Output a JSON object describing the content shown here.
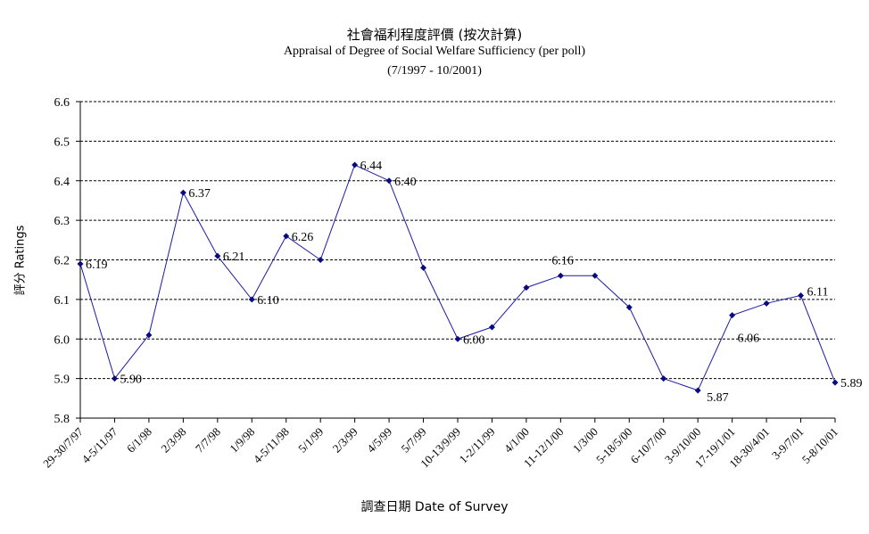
{
  "chart_data": {
    "type": "line",
    "title": "社會福利程度評價 (按次計算)",
    "subtitle": "Appraisal of Degree of Social Welfare Sufficiency (per poll)",
    "date_range": "(7/1997 - 10/2001)",
    "xlabel": "調查日期 Date of Survey",
    "ylabel": "評分 Ratings",
    "ylim": [
      5.8,
      6.6
    ],
    "yticks": [
      "6.6",
      "6.5",
      "6.4",
      "6.3",
      "6.2",
      "6.1",
      "6.0",
      "5.9",
      "5.8"
    ],
    "grid": true,
    "color": "#1a1aa6",
    "categories": [
      "29-30/7/97",
      "4-5/11/97",
      "6/1/98",
      "2/3/98",
      "7/7/98",
      "1/9/98",
      "4-5/11/98",
      "5/1/99",
      "2/3/99",
      "4/5/99",
      "5/7/99",
      "10-13/9/99",
      "1-2/11/99",
      "4/1/00",
      "11-12/1/00",
      "1/3/00",
      "5-18/5/00",
      "6-10/7/00",
      "3-9/10/00",
      "17-19/1/01",
      "18-30/4/01",
      "3-9/7/01",
      "5-8/10/01"
    ],
    "values": [
      6.19,
      5.9,
      6.01,
      6.37,
      6.21,
      6.1,
      6.26,
      6.2,
      6.44,
      6.4,
      6.18,
      6.0,
      6.03,
      6.13,
      6.16,
      6.16,
      6.08,
      5.9,
      5.87,
      6.06,
      6.09,
      6.11,
      5.89
    ],
    "data_labels": [
      "6.19",
      "5.90",
      "",
      "6.37",
      "6.21",
      "6.10",
      "6.26",
      "",
      "6.44",
      "6.40",
      "",
      "6.00",
      "",
      "",
      "6.16",
      "",
      "",
      "",
      "5.87",
      "6.06",
      "",
      "6.11",
      "5.89"
    ]
  }
}
